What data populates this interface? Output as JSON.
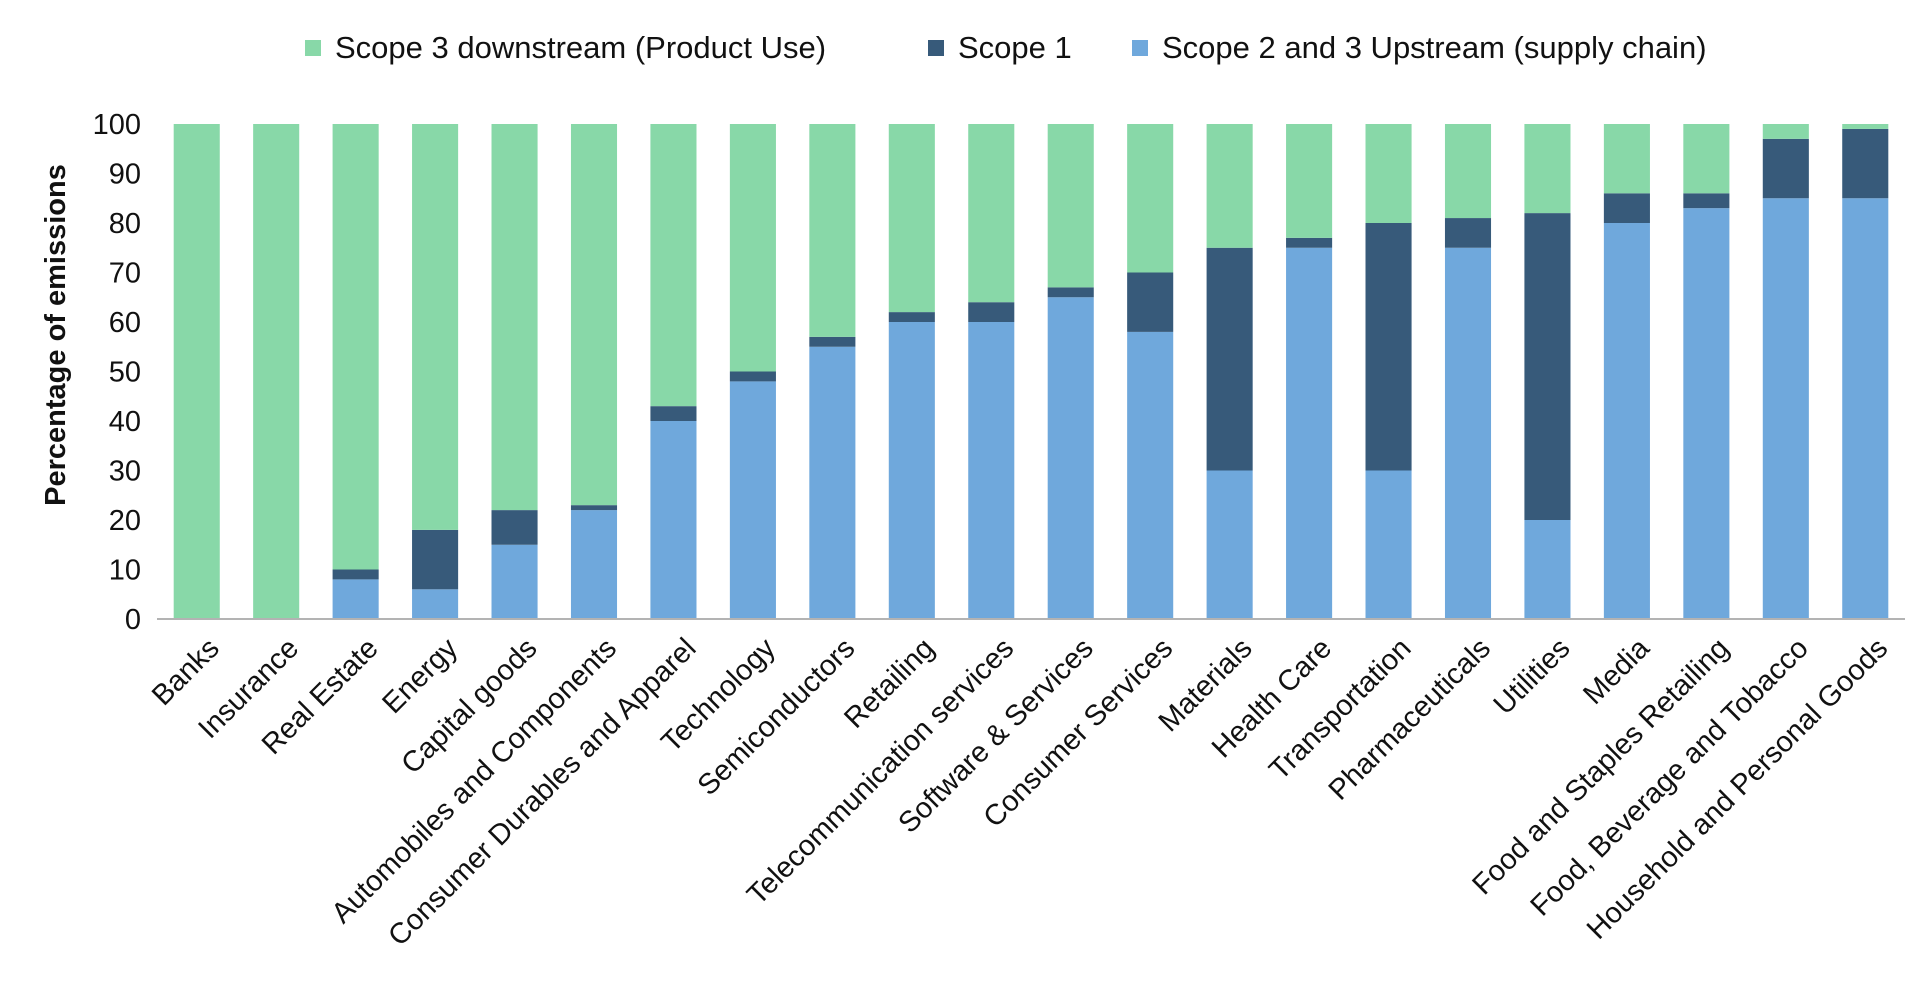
{
  "chart_data": {
    "type": "bar",
    "stacked": true,
    "title": "",
    "xlabel": "",
    "ylabel": "Percentage of emissions",
    "ylim": [
      0,
      100
    ],
    "yticks": [
      0,
      10,
      20,
      30,
      40,
      50,
      60,
      70,
      80,
      90,
      100
    ],
    "grid": false,
    "legend_position": "top",
    "categories": [
      "Banks",
      "Insurance",
      "Real Estate",
      "Energy",
      "Capital goods",
      "Automobiles and Components",
      "Consumer Durables and Apparel",
      "Technology",
      "Semiconductors",
      "Retailing",
      "Telecommunication services",
      "Software & Services",
      "Consumer Services",
      "Materials",
      "Health Care",
      "Transportation",
      "Pharmaceuticals",
      "Utilities",
      "Media",
      "Food and Staples Retailing",
      "Food, Beverage and Tobacco",
      "Household and Personal Goods"
    ],
    "series": [
      {
        "name": "Scope 2 and 3 Upstream (supply chain)",
        "color": "#6fa8dc",
        "values": [
          0,
          0,
          8,
          6,
          15,
          22,
          40,
          48,
          55,
          60,
          60,
          65,
          58,
          30,
          75,
          30,
          75,
          20,
          80,
          83,
          85,
          85
        ]
      },
      {
        "name": "Scope 1",
        "color": "#375a7a",
        "values": [
          0,
          0,
          2,
          12,
          7,
          1,
          3,
          2,
          2,
          2,
          4,
          2,
          12,
          45,
          2,
          50,
          6,
          62,
          6,
          3,
          12,
          14
        ]
      },
      {
        "name": "Scope 3 downstream (Product Use)",
        "color": "#88d8a8",
        "values": [
          100,
          100,
          90,
          82,
          78,
          77,
          57,
          50,
          43,
          38,
          36,
          33,
          30,
          25,
          23,
          20,
          19,
          18,
          14,
          14,
          3,
          1
        ]
      }
    ],
    "legend_order": [
      "Scope 3 downstream (Product Use)",
      "Scope 1",
      "Scope 2 and 3 Upstream (supply chain)"
    ]
  }
}
